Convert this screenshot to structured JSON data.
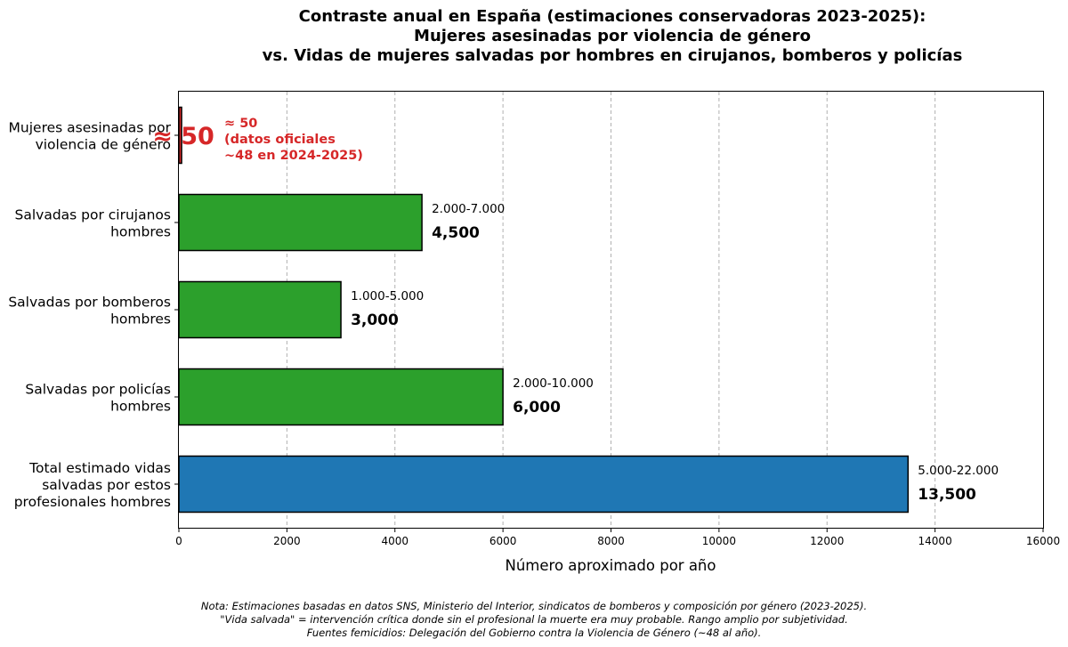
{
  "chart_data": {
    "type": "bar",
    "orientation": "horizontal",
    "title_lines": [
      "Contraste anual en España (estimaciones conservadoras 2023-2025):",
      "Mujeres asesinadas por violencia de género",
      "vs. Vidas de mujeres salvadas por hombres en cirujanos, bomberos y policías"
    ],
    "xlabel": "Número aproximado por año",
    "xlim": [
      0,
      16000
    ],
    "xticks": [
      0,
      2000,
      4000,
      6000,
      8000,
      10000,
      12000,
      14000,
      16000
    ],
    "grid": "x-dashed",
    "bars": [
      {
        "label_lines": [
          "Mujeres asesinadas por",
          "violencia de género"
        ],
        "value": 50,
        "color": "#d62728",
        "range": "",
        "value_text": "≈ 50"
      },
      {
        "label_lines": [
          "Salvadas por cirujanos",
          "hombres"
        ],
        "value": 4500,
        "color": "#2ca02c",
        "range": "2.000-7.000",
        "value_text": "4,500"
      },
      {
        "label_lines": [
          "Salvadas por bomberos",
          "hombres"
        ],
        "value": 3000,
        "color": "#2ca02c",
        "range": "1.000-5.000",
        "value_text": "3,000"
      },
      {
        "label_lines": [
          "Salvadas por policías",
          "hombres"
        ],
        "value": 6000,
        "color": "#2ca02c",
        "range": "2.000-10.000",
        "value_text": "6,000"
      },
      {
        "label_lines": [
          "Total estimado vidas",
          "salvadas por estos",
          "profesionales hombres"
        ],
        "value": 13500,
        "color": "#1f77b4",
        "range": "5.000-22.000",
        "value_text": "13,500"
      }
    ],
    "annotation_lines": [
      "≈ 50",
      "(datos oficiales",
      "~48 en 2024-2025)"
    ],
    "note_lines": [
      "Nota: Estimaciones basadas en datos SNS, Ministerio del Interior, sindicatos de bomberos y composición por género (2023-2025).",
      "\"Vida salvada\" = intervención crítica donde sin el profesional la muerte era muy probable. Rango amplio por subjetividad.",
      "Fuentes femicidios: Delegación del Gobierno contra la Violencia de Género (~48 al año)."
    ]
  }
}
